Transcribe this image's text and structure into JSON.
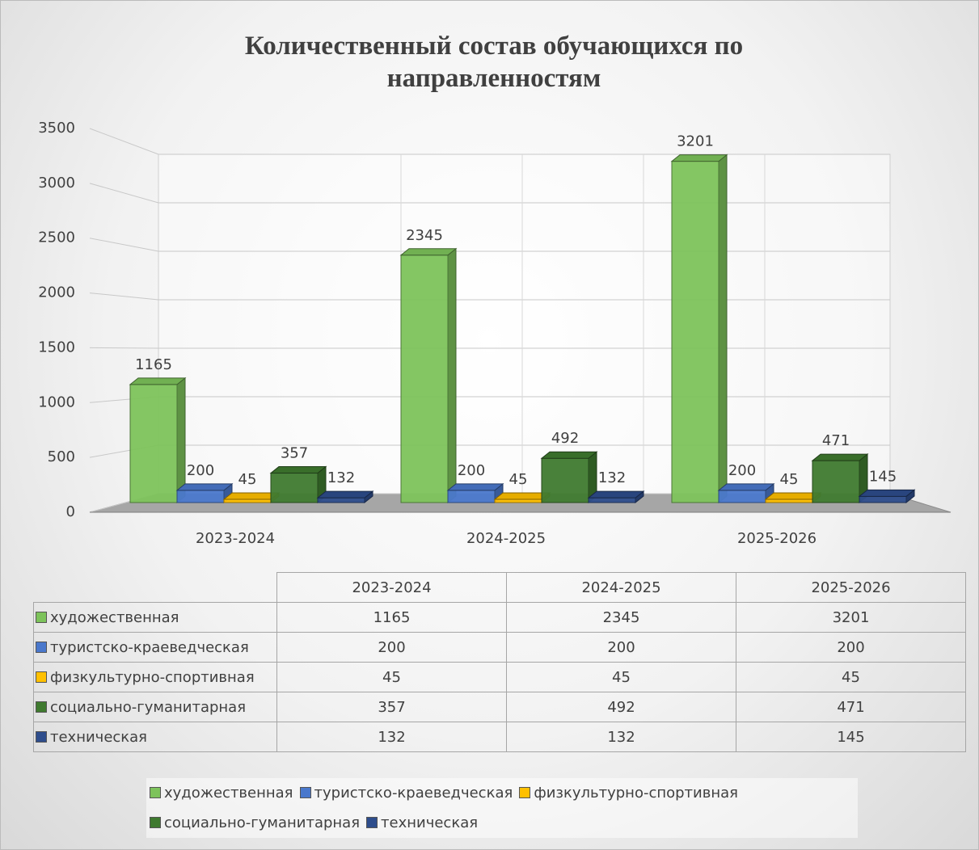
{
  "chart_data": {
    "type": "bar3d",
    "title": "Количественный состав обучающихся по направленностям",
    "categories": [
      "2023-2024",
      "2024-2025",
      "2025-2026"
    ],
    "series": [
      {
        "name": "художественная",
        "color": "#7dc35b",
        "values": [
          1165,
          2345,
          3201
        ]
      },
      {
        "name": "туристско-краеведческая",
        "color": "#4a78cc",
        "values": [
          200,
          200,
          200
        ]
      },
      {
        "name": "физкультурно-спортивная",
        "color": "#ffc000",
        "values": [
          45,
          45,
          45
        ]
      },
      {
        "name": "социально-гуманитарная",
        "color": "#3f7a2f",
        "values": [
          357,
          492,
          471
        ]
      },
      {
        "name": "техническая",
        "color": "#2e4d8c",
        "values": [
          132,
          132,
          145
        ]
      }
    ],
    "ylim": [
      0,
      3500
    ],
    "yticks": [
      0,
      500,
      1000,
      1500,
      2000,
      2500,
      3000,
      3500
    ],
    "grid": true,
    "legend": "bottom",
    "data_table": true
  }
}
